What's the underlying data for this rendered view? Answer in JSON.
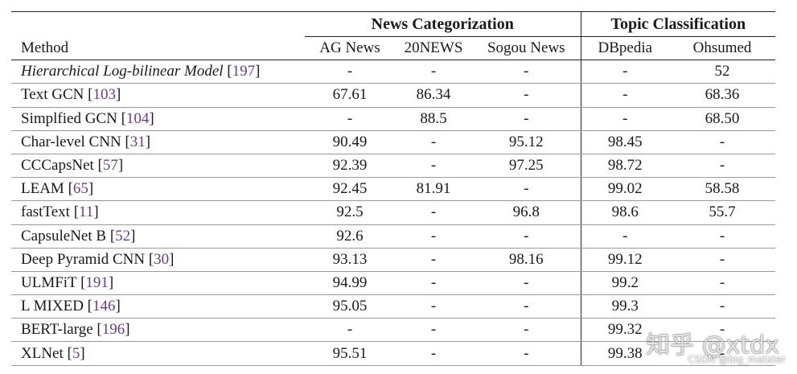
{
  "group_headers": {
    "news": "News Categorization",
    "topic": "Topic Classification"
  },
  "columns": [
    "Method",
    "AG News",
    "20NEWS",
    "Sogou News",
    "DBpedia",
    "Ohsumed"
  ],
  "rows": [
    {
      "method": "Hierarchical Log-bilinear Model",
      "ref": "197",
      "italic": true,
      "values": [
        "-",
        "-",
        "-",
        "-",
        "52"
      ]
    },
    {
      "method": "Text GCN",
      "ref": "103",
      "values": [
        "67.61",
        "86.34",
        "-",
        "-",
        "68.36"
      ]
    },
    {
      "method": "Simplfied GCN",
      "ref": "104",
      "values": [
        "-",
        "88.5",
        "-",
        "-",
        "68.50"
      ]
    },
    {
      "method": "Char-level CNN",
      "ref": "31",
      "values": [
        "90.49",
        "-",
        "95.12",
        "98.45",
        "-"
      ]
    },
    {
      "method": "CCCapsNet",
      "ref": "57",
      "values": [
        "92.39",
        "-",
        "97.25",
        "98.72",
        "-"
      ]
    },
    {
      "method": "LEAM",
      "ref": "65",
      "values": [
        "92.45",
        "81.91",
        "-",
        "99.02",
        "58.58"
      ]
    },
    {
      "method": "fastText",
      "ref": "11",
      "values": [
        "92.5",
        "-",
        "96.8",
        "98.6",
        "55.7"
      ]
    },
    {
      "method": "CapsuleNet B",
      "ref": "52",
      "values": [
        "92.6",
        "-",
        "-",
        "-",
        "-"
      ]
    },
    {
      "method": "Deep Pyramid CNN",
      "ref": "30",
      "values": [
        "93.13",
        "-",
        "98.16",
        "99.12",
        "-"
      ]
    },
    {
      "method": "ULMFiT",
      "ref": "191",
      "values": [
        "94.99",
        "-",
        "-",
        "99.2",
        "-"
      ]
    },
    {
      "method": "L MIXED",
      "ref": "146",
      "values": [
        "95.05",
        "-",
        "-",
        "99.3",
        "-"
      ]
    },
    {
      "method": "BERT-large",
      "ref": "196",
      "values": [
        "-",
        "-",
        "-",
        "99.32",
        "-"
      ]
    },
    {
      "method": "XLNet",
      "ref": "5",
      "values": [
        "95.51",
        "-",
        "-",
        "99.38",
        "-"
      ]
    }
  ],
  "watermark": {
    "main": "知乎 @xtdx",
    "sub": "CSDN @big_matster"
  }
}
